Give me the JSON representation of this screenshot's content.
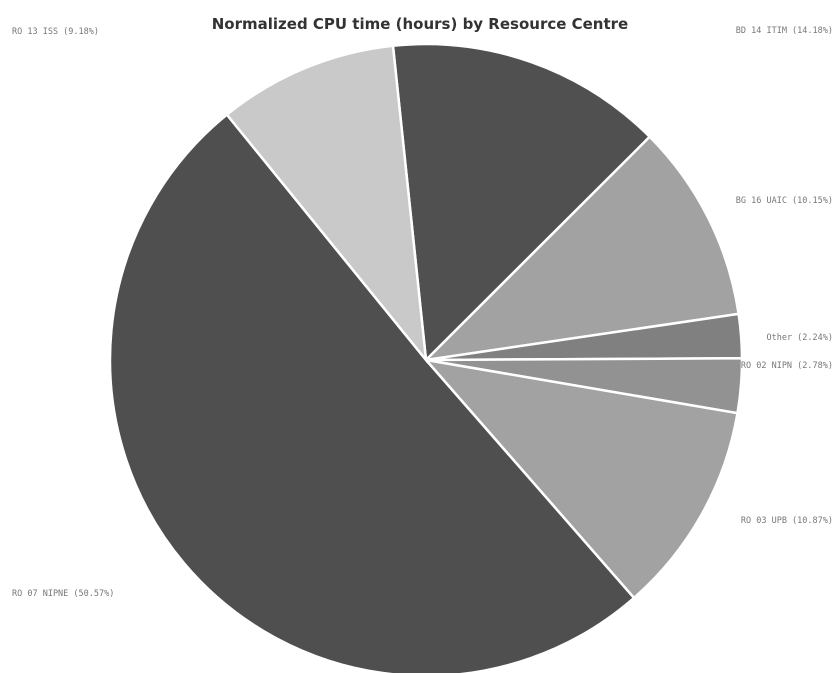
{
  "chart_data": {
    "type": "pie",
    "title": "Normalized CPU time (hours) by Resource Centre",
    "slices": [
      {
        "label": "BD 14 ITIM (14.18%)",
        "value": 14.18,
        "color": "#505050"
      },
      {
        "label": "BG 16 UAIC (10.15%)",
        "value": 10.15,
        "color": "#a2a2a2"
      },
      {
        "label": "Other (2.24%)",
        "value": 2.24,
        "color": "#808080"
      },
      {
        "label": "RO 02 NIPN (2.78%)",
        "value": 2.78,
        "color": "#929292"
      },
      {
        "label": "RO 03 UPB (10.87%)",
        "value": 10.87,
        "color": "#a2a2a2"
      },
      {
        "label": "RO 07 NIPNE (50.57%)",
        "value": 50.57,
        "color": "#4f4f4f"
      },
      {
        "label": "RO 13 ISS (9.18%)",
        "value": 9.18,
        "color": "#c9c9c9"
      }
    ],
    "start_angle_deg": -6
  }
}
